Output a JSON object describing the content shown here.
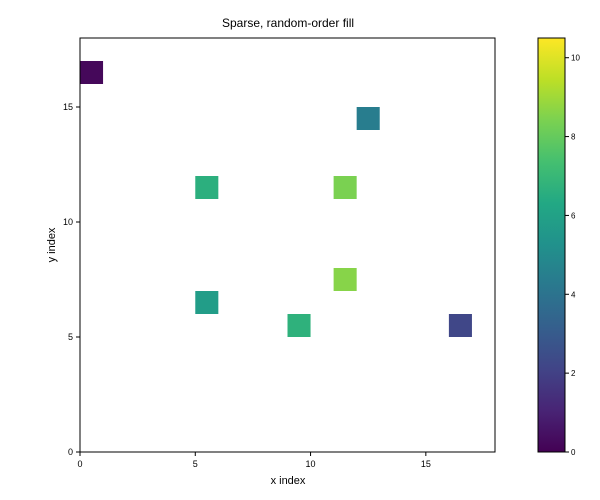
{
  "chart_data": {
    "type": "heatmap",
    "title": "Sparse, random-order fill",
    "xlabel": "x index",
    "ylabel": "y index",
    "xlim": [
      0,
      18
    ],
    "ylim": [
      0,
      18
    ],
    "xticks": [
      0,
      5,
      10,
      15
    ],
    "yticks": [
      0,
      5,
      10,
      15
    ],
    "cells": [
      {
        "x": 0,
        "y": 16,
        "value": 0.2
      },
      {
        "x": 12,
        "y": 14,
        "value": 4.4
      },
      {
        "x": 5,
        "y": 11,
        "value": 6.6
      },
      {
        "x": 11,
        "y": 11,
        "value": 8.4
      },
      {
        "x": 11,
        "y": 7,
        "value": 8.6
      },
      {
        "x": 5,
        "y": 6,
        "value": 5.8
      },
      {
        "x": 9,
        "y": 5,
        "value": 6.7
      },
      {
        "x": 16,
        "y": 5,
        "value": 2.2
      }
    ],
    "colorbar": {
      "min": 0,
      "max": 10.5,
      "ticks": [
        0,
        2,
        4,
        6,
        8,
        10
      ],
      "colormap": "viridis"
    },
    "grid": false
  }
}
